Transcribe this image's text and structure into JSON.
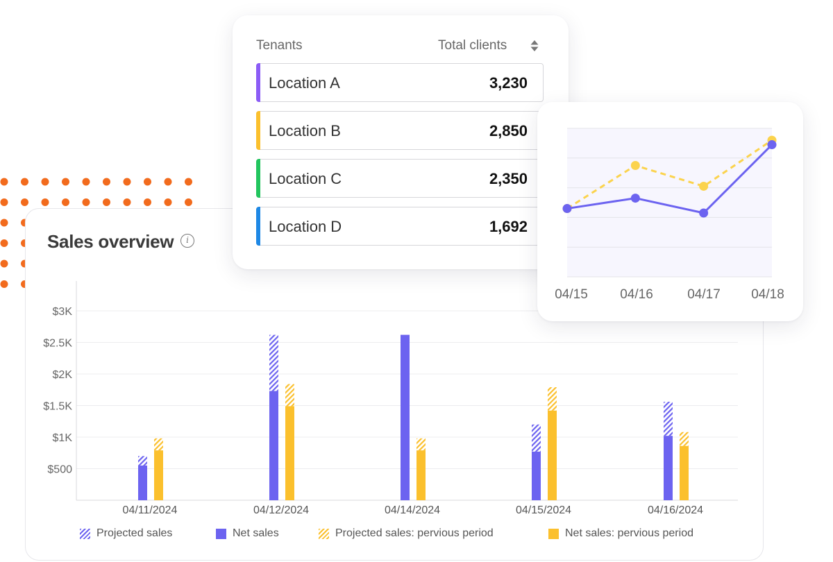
{
  "sales": {
    "title": "Sales overview",
    "info_icon": "info-icon"
  },
  "tenants": {
    "header_left": "Tenants",
    "header_right": "Total clients",
    "sort_icon": "sort-icon",
    "rows": [
      {
        "name": "Location A",
        "value": "3,230",
        "color": "#8b5cf6"
      },
      {
        "name": "Location B",
        "value": "2,850",
        "color": "#fbc02d"
      },
      {
        "name": "Location C",
        "value": "2,350",
        "color": "#22c55e"
      },
      {
        "name": "Location D",
        "value": "1,692",
        "color": "#1e88e5"
      }
    ]
  },
  "legend": {
    "projected": "Projected sales",
    "net": "Net sales",
    "prev_projected": "Projected sales: pervious period",
    "prev_net": "Net sales: pervious period"
  },
  "colors": {
    "net": "#6c63f0",
    "prev": "#fbc02d",
    "dots": "#f26b1d",
    "line_current": "#6c63f0",
    "line_previous": "#fbd34d"
  },
  "chart_data": [
    {
      "type": "bar",
      "title": "Sales overview",
      "categories": [
        "04/11/2024",
        "04/12/2024",
        "04/14/2024",
        "04/15/2024",
        "04/16/2024"
      ],
      "y_ticks": [
        "$500",
        "$1K",
        "$1.5K",
        "$2K",
        "$2.5K",
        "$3K"
      ],
      "ylim": [
        0,
        3000
      ],
      "grid": true,
      "series": [
        {
          "name": "Net sales",
          "values": [
            550,
            1730,
            2620,
            770,
            1020
          ]
        },
        {
          "name": "Projected sales",
          "values": [
            700,
            2620,
            2620,
            1200,
            1560
          ]
        },
        {
          "name": "Net sales: pervious period",
          "values": [
            790,
            1490,
            790,
            1420,
            860
          ]
        },
        {
          "name": "Projected sales: pervious period",
          "values": [
            980,
            1840,
            980,
            1790,
            1080
          ]
        }
      ],
      "legend_position": "bottom"
    },
    {
      "type": "line",
      "categories": [
        "04/15",
        "04/16",
        "04/17",
        "04/18"
      ],
      "ylim": [
        0,
        5
      ],
      "grid": true,
      "series": [
        {
          "values": [
            2.3,
            2.65,
            2.15,
            4.45
          ]
        },
        {
          "values": [
            2.3,
            3.75,
            3.05,
            4.6
          ]
        }
      ]
    }
  ]
}
